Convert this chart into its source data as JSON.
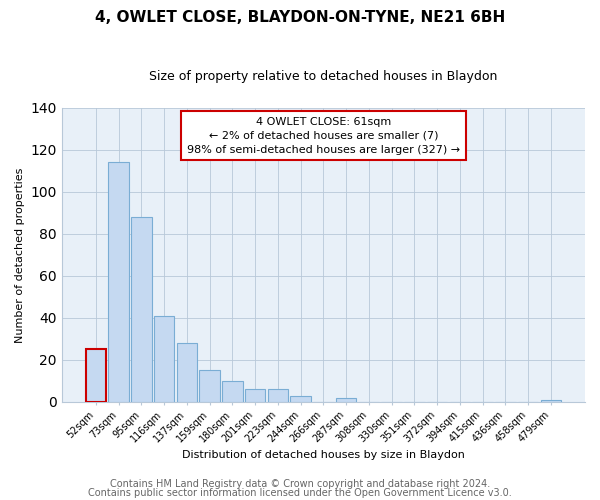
{
  "title": "4, OWLET CLOSE, BLAYDON-ON-TYNE, NE21 6BH",
  "subtitle": "Size of property relative to detached houses in Blaydon",
  "xlabel": "Distribution of detached houses by size in Blaydon",
  "ylabel": "Number of detached properties",
  "bar_labels": [
    "52sqm",
    "73sqm",
    "95sqm",
    "116sqm",
    "137sqm",
    "159sqm",
    "180sqm",
    "201sqm",
    "223sqm",
    "244sqm",
    "266sqm",
    "287sqm",
    "308sqm",
    "330sqm",
    "351sqm",
    "372sqm",
    "394sqm",
    "415sqm",
    "436sqm",
    "458sqm",
    "479sqm"
  ],
  "bar_values": [
    25,
    114,
    88,
    41,
    28,
    15,
    10,
    6,
    6,
    3,
    0,
    2,
    0,
    0,
    0,
    0,
    0,
    0,
    0,
    0,
    1
  ],
  "bar_color": "#c5d9f1",
  "bar_edge_color": "#7aadd4",
  "highlight_bar_index": 0,
  "highlight_bar_edge_color": "#cc0000",
  "ylim": [
    0,
    140
  ],
  "yticks": [
    0,
    20,
    40,
    60,
    80,
    100,
    120,
    140
  ],
  "plot_bg_color": "#e8f0f8",
  "annotation_title": "4 OWLET CLOSE: 61sqm",
  "annotation_line1": "← 2% of detached houses are smaller (7)",
  "annotation_line2": "98% of semi-detached houses are larger (327) →",
  "annotation_box_edge_color": "#cc0000",
  "footer_line1": "Contains HM Land Registry data © Crown copyright and database right 2024.",
  "footer_line2": "Contains public sector information licensed under the Open Government Licence v3.0.",
  "title_fontsize": 11,
  "subtitle_fontsize": 9,
  "axis_fontsize": 8,
  "tick_fontsize": 7,
  "footer_fontsize": 7
}
